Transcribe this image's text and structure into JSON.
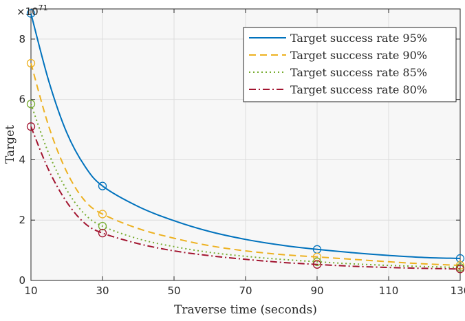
{
  "chart_data": {
    "type": "line",
    "xlabel": "Traverse time (seconds)",
    "ylabel": "Target",
    "y_exponent_base": "×10",
    "y_exponent_power": "71",
    "xlim": [
      10,
      130
    ],
    "ylim": [
      0,
      9
    ],
    "xticks": [
      10,
      30,
      50,
      70,
      90,
      110,
      130
    ],
    "yticks": [
      0,
      2,
      4,
      6,
      8
    ],
    "grid": true,
    "legend_position": "top-right",
    "marker_x": [
      10,
      30,
      90,
      130
    ],
    "series": [
      {
        "name": "Target success rate 95%",
        "color": "#0072BD",
        "dash": "solid",
        "points": [
          [
            10,
            8.85
          ],
          [
            30,
            3.13
          ],
          [
            90,
            1.03
          ],
          [
            130,
            0.73
          ]
        ],
        "curve": [
          [
            10,
            8.85
          ],
          [
            15,
            6.6
          ],
          [
            20,
            4.9
          ],
          [
            25,
            3.8
          ],
          [
            30,
            3.13
          ],
          [
            40,
            2.45
          ],
          [
            50,
            1.98
          ],
          [
            60,
            1.62
          ],
          [
            70,
            1.36
          ],
          [
            80,
            1.17
          ],
          [
            90,
            1.03
          ],
          [
            100,
            0.92
          ],
          [
            110,
            0.83
          ],
          [
            120,
            0.76
          ],
          [
            130,
            0.73
          ]
        ]
      },
      {
        "name": "Target success rate 90%",
        "color": "#EDB120",
        "dash": "dashed",
        "points": [
          [
            10,
            7.2
          ],
          [
            30,
            2.2
          ],
          [
            90,
            0.78
          ],
          [
            130,
            0.5
          ]
        ],
        "curve": [
          [
            10,
            7.2
          ],
          [
            15,
            5.1
          ],
          [
            20,
            3.6
          ],
          [
            25,
            2.65
          ],
          [
            30,
            2.2
          ],
          [
            40,
            1.72
          ],
          [
            50,
            1.4
          ],
          [
            60,
            1.15
          ],
          [
            70,
            0.98
          ],
          [
            80,
            0.86
          ],
          [
            90,
            0.78
          ],
          [
            100,
            0.7
          ],
          [
            110,
            0.62
          ],
          [
            120,
            0.55
          ],
          [
            130,
            0.5
          ]
        ]
      },
      {
        "name": "Target success rate 85%",
        "color": "#77AC30",
        "dash": "dotted",
        "points": [
          [
            10,
            5.85
          ],
          [
            30,
            1.8
          ],
          [
            90,
            0.62
          ],
          [
            130,
            0.43
          ]
        ],
        "curve": [
          [
            10,
            5.85
          ],
          [
            15,
            4.2
          ],
          [
            20,
            3.0
          ],
          [
            25,
            2.2
          ],
          [
            30,
            1.8
          ],
          [
            40,
            1.38
          ],
          [
            50,
            1.12
          ],
          [
            60,
            0.93
          ],
          [
            70,
            0.8
          ],
          [
            80,
            0.7
          ],
          [
            90,
            0.62
          ],
          [
            100,
            0.55
          ],
          [
            110,
            0.5
          ],
          [
            120,
            0.46
          ],
          [
            130,
            0.43
          ]
        ]
      },
      {
        "name": "Target success rate 80%",
        "color": "#A2142F",
        "dash": "dashdot",
        "points": [
          [
            10,
            5.1
          ],
          [
            30,
            1.57
          ],
          [
            90,
            0.53
          ],
          [
            130,
            0.38
          ]
        ],
        "curve": [
          [
            10,
            5.1
          ],
          [
            15,
            3.65
          ],
          [
            20,
            2.6
          ],
          [
            25,
            1.9
          ],
          [
            30,
            1.57
          ],
          [
            40,
            1.22
          ],
          [
            50,
            0.98
          ],
          [
            60,
            0.82
          ],
          [
            70,
            0.7
          ],
          [
            80,
            0.6
          ],
          [
            90,
            0.53
          ],
          [
            100,
            0.47
          ],
          [
            110,
            0.43
          ],
          [
            120,
            0.4
          ],
          [
            130,
            0.38
          ]
        ]
      }
    ]
  }
}
